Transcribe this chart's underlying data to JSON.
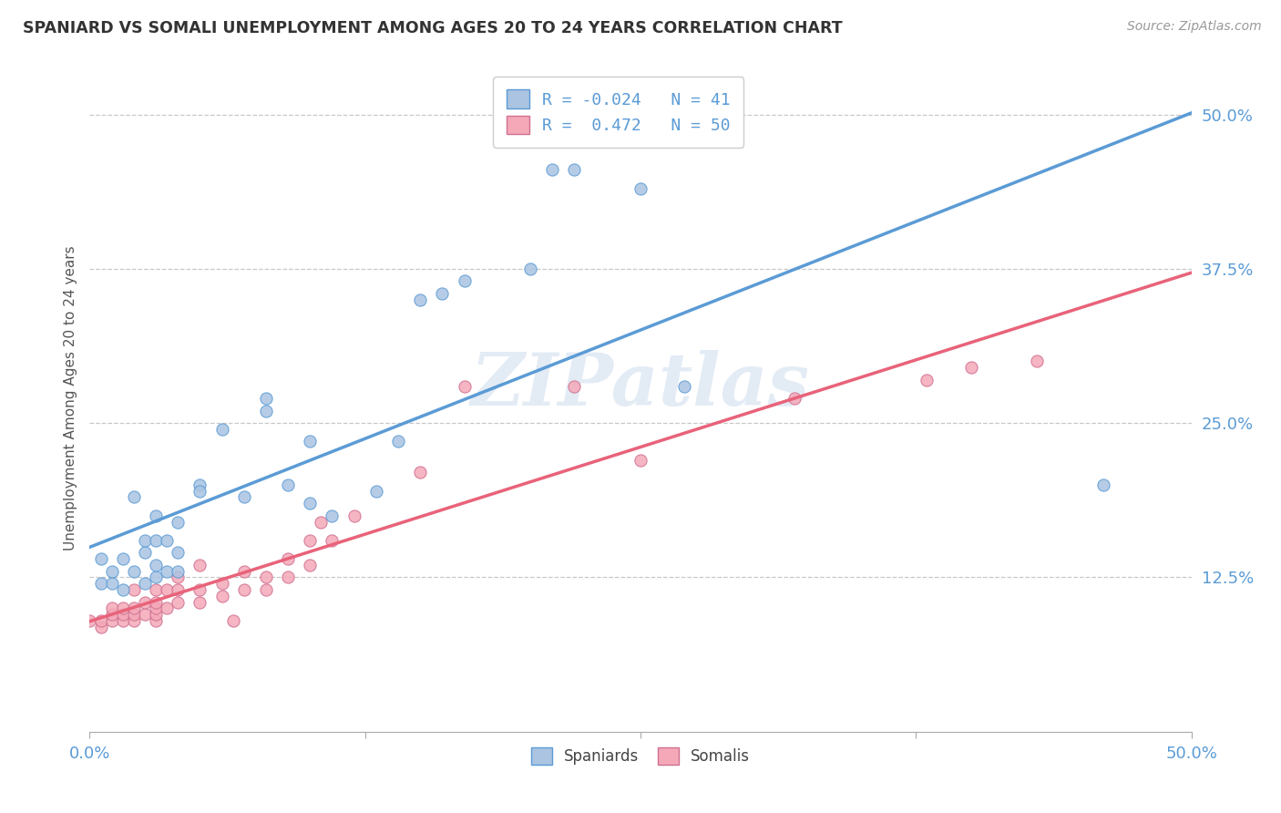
{
  "title": "SPANIARD VS SOMALI UNEMPLOYMENT AMONG AGES 20 TO 24 YEARS CORRELATION CHART",
  "source": "Source: ZipAtlas.com",
  "ylabel": "Unemployment Among Ages 20 to 24 years",
  "xlim": [
    0.0,
    0.5
  ],
  "ylim": [
    0.0,
    0.54
  ],
  "xtick_labels": [
    "0.0%",
    "",
    "",
    "",
    "50.0%"
  ],
  "xtick_vals": [
    0.0,
    0.125,
    0.25,
    0.375,
    0.5
  ],
  "ytick_labels": [
    "12.5%",
    "25.0%",
    "37.5%",
    "50.0%"
  ],
  "ytick_vals": [
    0.125,
    0.25,
    0.375,
    0.5
  ],
  "r_spaniard": -0.024,
  "n_spaniard": 41,
  "r_somali": 0.472,
  "n_somali": 50,
  "spaniard_color": "#aac4e2",
  "somali_color": "#f4a8b8",
  "spaniard_line_color": "#5b9bd5",
  "somali_line_color": "#e8637a",
  "watermark_text": "ZIPatlas",
  "spaniard_x": [
    0.005,
    0.005,
    0.01,
    0.01,
    0.015,
    0.015,
    0.02,
    0.02,
    0.025,
    0.025,
    0.025,
    0.03,
    0.03,
    0.03,
    0.03,
    0.035,
    0.035,
    0.04,
    0.04,
    0.04,
    0.05,
    0.05,
    0.06,
    0.07,
    0.08,
    0.08,
    0.09,
    0.1,
    0.1,
    0.11,
    0.13,
    0.14,
    0.15,
    0.16,
    0.17,
    0.2,
    0.21,
    0.22,
    0.25,
    0.27,
    0.46
  ],
  "spaniard_y": [
    0.12,
    0.14,
    0.12,
    0.13,
    0.115,
    0.14,
    0.13,
    0.19,
    0.12,
    0.145,
    0.155,
    0.125,
    0.135,
    0.155,
    0.175,
    0.13,
    0.155,
    0.13,
    0.145,
    0.17,
    0.2,
    0.195,
    0.245,
    0.19,
    0.27,
    0.26,
    0.2,
    0.235,
    0.185,
    0.175,
    0.195,
    0.235,
    0.35,
    0.355,
    0.365,
    0.375,
    0.455,
    0.455,
    0.44,
    0.28,
    0.2
  ],
  "somali_x": [
    0.0,
    0.005,
    0.005,
    0.01,
    0.01,
    0.01,
    0.015,
    0.015,
    0.015,
    0.02,
    0.02,
    0.02,
    0.02,
    0.025,
    0.025,
    0.03,
    0.03,
    0.03,
    0.03,
    0.03,
    0.035,
    0.035,
    0.04,
    0.04,
    0.04,
    0.05,
    0.05,
    0.05,
    0.06,
    0.06,
    0.065,
    0.07,
    0.07,
    0.08,
    0.08,
    0.09,
    0.09,
    0.1,
    0.1,
    0.105,
    0.11,
    0.12,
    0.15,
    0.17,
    0.22,
    0.25,
    0.32,
    0.38,
    0.4,
    0.43
  ],
  "somali_y": [
    0.09,
    0.085,
    0.09,
    0.09,
    0.095,
    0.1,
    0.09,
    0.095,
    0.1,
    0.09,
    0.095,
    0.1,
    0.115,
    0.095,
    0.105,
    0.09,
    0.095,
    0.1,
    0.105,
    0.115,
    0.1,
    0.115,
    0.105,
    0.115,
    0.125,
    0.105,
    0.115,
    0.135,
    0.11,
    0.12,
    0.09,
    0.115,
    0.13,
    0.115,
    0.125,
    0.125,
    0.14,
    0.135,
    0.155,
    0.17,
    0.155,
    0.175,
    0.21,
    0.28,
    0.28,
    0.22,
    0.27,
    0.285,
    0.295,
    0.3
  ]
}
